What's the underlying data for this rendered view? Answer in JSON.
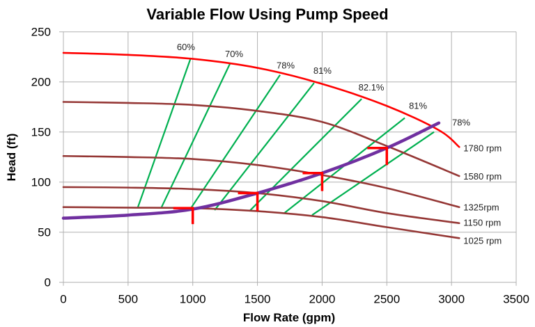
{
  "chart_data": {
    "type": "line",
    "title": "Variable Flow Using Pump Speed",
    "xlabel": "Flow Rate (gpm)",
    "ylabel": "Head (ft)",
    "xlim": [
      0,
      3500
    ],
    "ylim": [
      0,
      250
    ],
    "xticks": [
      0,
      500,
      1000,
      1500,
      2000,
      2500,
      3000,
      3500
    ],
    "yticks": [
      0,
      50,
      100,
      150,
      200,
      250
    ],
    "grid": true,
    "legend": "none",
    "pump_curves": [
      {
        "label": "1780 rpm",
        "color": "#ff0000",
        "points": [
          [
            0,
            229
          ],
          [
            500,
            227
          ],
          [
            1000,
            223
          ],
          [
            1500,
            214
          ],
          [
            2000,
            198
          ],
          [
            2500,
            176
          ],
          [
            2900,
            152
          ],
          [
            3060,
            135
          ]
        ]
      },
      {
        "label": "1580 rpm",
        "color": "#953735",
        "points": [
          [
            0,
            180
          ],
          [
            500,
            179
          ],
          [
            1000,
            177
          ],
          [
            1500,
            171
          ],
          [
            2000,
            160
          ],
          [
            2500,
            136
          ],
          [
            3060,
            106
          ]
        ]
      },
      {
        "label": "1325rpm",
        "color": "#953735",
        "points": [
          [
            0,
            126
          ],
          [
            500,
            125
          ],
          [
            1000,
            123
          ],
          [
            1500,
            117
          ],
          [
            2000,
            107
          ],
          [
            2500,
            94
          ],
          [
            3060,
            75
          ]
        ]
      },
      {
        "label": "1150 rpm",
        "color": "#953735",
        "points": [
          [
            0,
            95
          ],
          [
            500,
            94.5
          ],
          [
            1000,
            93
          ],
          [
            1500,
            89
          ],
          [
            2000,
            81
          ],
          [
            2500,
            69
          ],
          [
            3060,
            59
          ]
        ]
      },
      {
        "label": "1025 rpm",
        "color": "#953735",
        "points": [
          [
            0,
            75
          ],
          [
            500,
            74.5
          ],
          [
            1000,
            74
          ],
          [
            1500,
            71
          ],
          [
            2000,
            65
          ],
          [
            2500,
            55
          ],
          [
            3060,
            44
          ]
        ]
      }
    ],
    "system_curve": {
      "color": "#7030a0",
      "points": [
        [
          0,
          64
        ],
        [
          500,
          67
        ],
        [
          1000,
          73
        ],
        [
          1500,
          89
        ],
        [
          2000,
          109
        ],
        [
          2500,
          134
        ],
        [
          2902,
          159
        ]
      ]
    },
    "efficiency_lines": [
      {
        "label": "60%",
        "color": "#00b050",
        "points": [
          [
            576,
            75
          ],
          [
            985,
            224
          ]
        ]
      },
      {
        "label": "70%",
        "color": "#00b050",
        "points": [
          [
            759,
            75
          ],
          [
            1287,
            218
          ]
        ]
      },
      {
        "label": "78%",
        "color": "#00b050",
        "points": [
          [
            991,
            75
          ],
          [
            1675,
            207
          ]
        ]
      },
      {
        "label": "81%",
        "color": "#00b050",
        "points": [
          [
            1169,
            72
          ],
          [
            1938,
            199
          ]
        ]
      },
      {
        "label": "82.1%",
        "color": "#00b050",
        "points": [
          [
            1438,
            71
          ],
          [
            2305,
            183
          ]
        ]
      },
      {
        "label": "81%",
        "color": "#00b050",
        "points": [
          [
            1707,
            69
          ],
          [
            2639,
            164
          ]
        ]
      },
      {
        "label": "78%",
        "color": "#00b050",
        "points": [
          [
            1922,
            67
          ],
          [
            2865,
            150
          ]
        ]
      }
    ],
    "operating_point_markers": {
      "color": "#ff0000",
      "points": [
        {
          "flow": 1000,
          "head": 74,
          "drop_to": 58
        },
        {
          "flow": 1500,
          "head": 89,
          "drop_to": 71
        },
        {
          "flow": 2000,
          "head": 109,
          "drop_to": 91
        },
        {
          "flow": 2500,
          "head": 134,
          "drop_to": 117
        }
      ]
    }
  }
}
